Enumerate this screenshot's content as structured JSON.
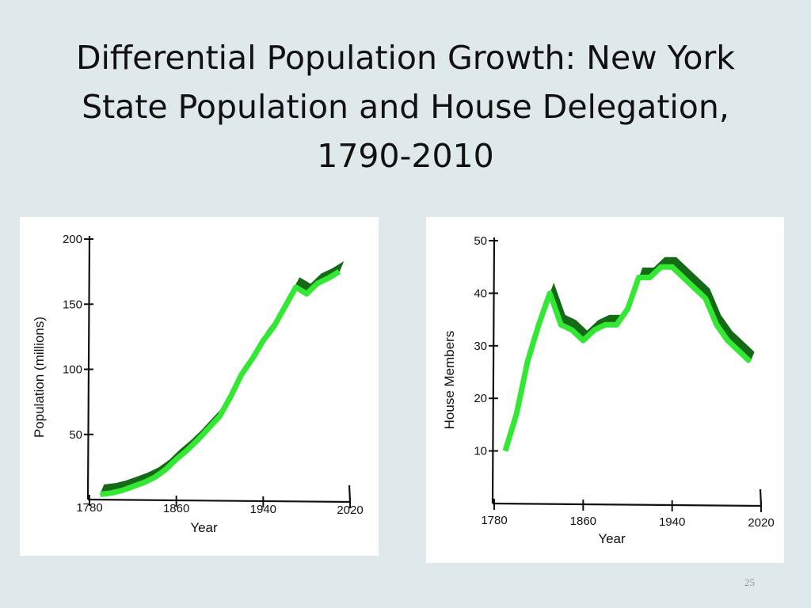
{
  "slide": {
    "title": "Differential Population Growth: New York State Population and House Delegation, 1790-2010",
    "slide_number": "25"
  },
  "chart_data": [
    {
      "type": "line",
      "title": "",
      "xlabel": "Year",
      "ylabel": "Population  (millions)",
      "xlim": [
        1780,
        2020
      ],
      "ylim": [
        0,
        200
      ],
      "xticks": [
        1780,
        1860,
        1940,
        2020
      ],
      "yticks": [
        50,
        100,
        150,
        200
      ],
      "grid": false,
      "colors": {
        "front": "#33e833",
        "back": "#156b15",
        "axis": "#111111"
      },
      "x": [
        1790,
        1800,
        1810,
        1820,
        1830,
        1840,
        1850,
        1860,
        1870,
        1880,
        1890,
        1900,
        1910,
        1920,
        1930,
        1940,
        1950,
        1960,
        1970,
        1980,
        1990,
        2000,
        2010
      ],
      "series": [
        {
          "values": [
            4,
            5,
            7,
            10,
            13,
            17,
            23,
            31,
            38,
            46,
            55,
            64,
            79,
            96,
            108,
            122,
            133,
            148,
            163,
            158,
            166,
            170,
            175
          ]
        }
      ]
    },
    {
      "type": "line",
      "title": "",
      "xlabel": "Year",
      "ylabel": "House Members",
      "xlim": [
        1780,
        2020
      ],
      "ylim": [
        0,
        50
      ],
      "xticks": [
        1780,
        1860,
        1940,
        2020
      ],
      "yticks": [
        10,
        20,
        30,
        40,
        50
      ],
      "grid": false,
      "colors": {
        "front": "#33e833",
        "back": "#156b15",
        "axis": "#111111"
      },
      "x": [
        1790,
        1800,
        1810,
        1820,
        1830,
        1840,
        1850,
        1860,
        1870,
        1880,
        1890,
        1900,
        1910,
        1920,
        1930,
        1940,
        1950,
        1960,
        1970,
        1980,
        1990,
        2000,
        2010
      ],
      "series": [
        {
          "values": [
            10,
            17,
            27,
            34,
            40,
            34,
            33,
            31,
            33,
            34,
            34,
            37,
            43,
            43,
            45,
            45,
            43,
            41,
            39,
            34,
            31,
            29,
            27
          ]
        }
      ]
    }
  ]
}
